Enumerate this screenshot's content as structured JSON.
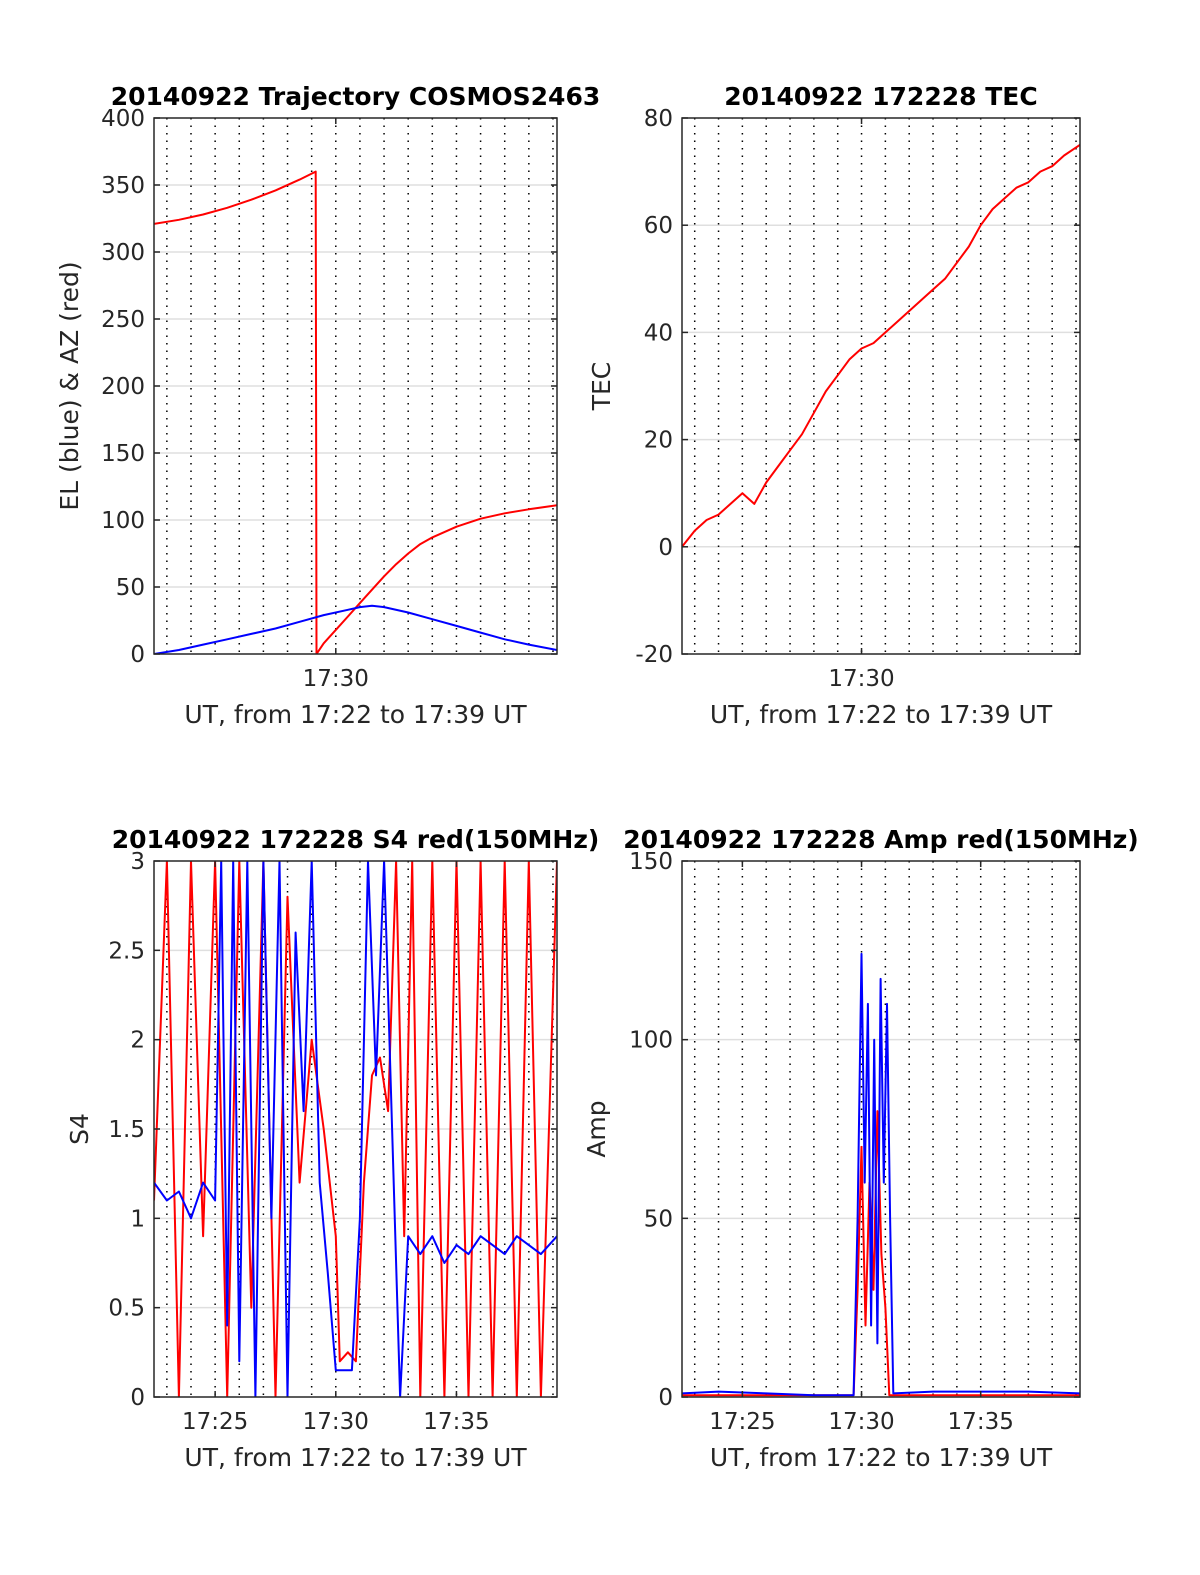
{
  "chart_data": [
    {
      "type": "line",
      "title": "20140922 Trajectory COSMOS2463",
      "xlabel": "UT, from 17:22 to 17:39 UT",
      "ylabel": "EL (blue) & AZ (red)",
      "xlim": [
        "17:22:28",
        "17:39:10"
      ],
      "ylim": [
        0,
        400
      ],
      "yticks": [
        "0",
        "50",
        "100",
        "150",
        "200",
        "250",
        "300",
        "350",
        "400"
      ],
      "xticks": [
        {
          "t": "17:30",
          "label": "17:30"
        }
      ],
      "grid": true,
      "series": [
        {
          "color": "#ff0000",
          "x": [
            "17:22:28",
            "17:23:30",
            "17:24:30",
            "17:25:30",
            "17:26:30",
            "17:27:30",
            "17:28:30",
            "17:29:10",
            "17:29:12",
            "17:29:30",
            "17:30:00",
            "17:30:30",
            "17:31:00",
            "17:31:30",
            "17:32:00",
            "17:32:30",
            "17:33:00",
            "17:33:30",
            "17:34:00",
            "17:35:00",
            "17:36:00",
            "17:37:00",
            "17:38:00",
            "17:39:10"
          ],
          "values": [
            321,
            324,
            328,
            333,
            339,
            346,
            354,
            360,
            0,
            8,
            18,
            28,
            38,
            48,
            58,
            67,
            75,
            82,
            87,
            95,
            101,
            105,
            108,
            111
          ]
        },
        {
          "color": "#0000ff",
          "x": [
            "17:22:28",
            "17:23:30",
            "17:24:30",
            "17:25:30",
            "17:26:30",
            "17:27:30",
            "17:28:30",
            "17:29:30",
            "17:30:30",
            "17:31:00",
            "17:31:30",
            "17:32:00",
            "17:33:00",
            "17:34:00",
            "17:35:00",
            "17:36:00",
            "17:37:00",
            "17:38:00",
            "17:39:10"
          ],
          "values": [
            0,
            3,
            7,
            11,
            15,
            19,
            24,
            29,
            33,
            35,
            36,
            35,
            31,
            26,
            21,
            16,
            11,
            7,
            3
          ]
        }
      ]
    },
    {
      "type": "line",
      "title": "20140922 172228 TEC",
      "xlabel": "UT, from 17:22 to 17:39 UT",
      "ylabel": "TEC",
      "xlim": [
        "17:22:28",
        "17:39:10"
      ],
      "ylim": [
        -20,
        80
      ],
      "yticks": [
        "-20",
        "0",
        "20",
        "40",
        "60",
        "80"
      ],
      "xticks": [
        {
          "t": "17:30",
          "label": "17:30"
        }
      ],
      "grid": true,
      "series": [
        {
          "color": "#ff0000",
          "x": [
            "17:22:28",
            "17:23:00",
            "17:23:30",
            "17:24:00",
            "17:24:30",
            "17:25:00",
            "17:25:30",
            "17:26:00",
            "17:26:30",
            "17:27:00",
            "17:27:30",
            "17:28:00",
            "17:28:30",
            "17:29:00",
            "17:29:30",
            "17:30:00",
            "17:30:30",
            "17:31:00",
            "17:31:30",
            "17:32:00",
            "17:32:30",
            "17:33:00",
            "17:33:30",
            "17:34:00",
            "17:34:30",
            "17:35:00",
            "17:35:30",
            "17:36:00",
            "17:36:30",
            "17:37:00",
            "17:37:30",
            "17:38:00",
            "17:38:30",
            "17:39:10"
          ],
          "values": [
            0,
            3,
            5,
            6,
            8,
            10,
            8,
            12,
            15,
            18,
            21,
            25,
            29,
            32,
            35,
            37,
            38,
            40,
            42,
            44,
            46,
            48,
            50,
            53,
            56,
            60,
            63,
            65,
            67,
            68,
            70,
            71,
            73,
            75
          ]
        }
      ]
    },
    {
      "type": "line",
      "title": "20140922 172228 S4 red(150MHz)",
      "xlabel": "UT, from 17:22 to 17:39 UT",
      "ylabel": "S4",
      "xlim": [
        "17:22:28",
        "17:39:10"
      ],
      "ylim": [
        0,
        3
      ],
      "yticks": [
        "0",
        "0.5",
        "1",
        "1.5",
        "2",
        "2.5",
        "3"
      ],
      "xticks": [
        {
          "t": "17:25",
          "label": "17:25"
        },
        {
          "t": "17:30",
          "label": "17:30"
        },
        {
          "t": "17:35",
          "label": "17:35"
        }
      ],
      "grid": true,
      "series": [
        {
          "color": "#ff0000",
          "x": [
            "17:22:28",
            "17:23:00",
            "17:23:30",
            "17:24:00",
            "17:24:30",
            "17:25:00",
            "17:25:30",
            "17:26:00",
            "17:26:30",
            "17:27:00",
            "17:27:30",
            "17:28:00",
            "17:28:30",
            "17:29:00",
            "17:29:30",
            "17:30:00",
            "17:30:10",
            "17:30:30",
            "17:30:50",
            "17:31:10",
            "17:31:30",
            "17:31:50",
            "17:32:10",
            "17:32:30",
            "17:32:50",
            "17:33:10",
            "17:33:30",
            "17:34:00",
            "17:34:30",
            "17:35:00",
            "17:35:30",
            "17:36:00",
            "17:36:30",
            "17:37:00",
            "17:37:30",
            "17:38:00",
            "17:38:30",
            "17:39:10"
          ],
          "values": [
            1.1,
            3.0,
            0.0,
            3.0,
            0.9,
            3.0,
            0.0,
            3.0,
            0.5,
            3.0,
            0.0,
            2.8,
            1.2,
            2.0,
            1.5,
            0.9,
            0.2,
            0.25,
            0.2,
            1.2,
            1.8,
            1.9,
            1.6,
            3.0,
            0.9,
            3.0,
            0.0,
            3.0,
            0.0,
            3.0,
            0.0,
            3.0,
            0.0,
            3.0,
            0.0,
            3.0,
            0.0,
            3.0
          ]
        },
        {
          "color": "#0000ff",
          "x": [
            "17:22:28",
            "17:23:00",
            "17:23:30",
            "17:24:00",
            "17:24:30",
            "17:25:00",
            "17:25:15",
            "17:25:30",
            "17:25:45",
            "17:26:00",
            "17:26:20",
            "17:26:40",
            "17:27:00",
            "17:27:20",
            "17:27:40",
            "17:28:00",
            "17:28:20",
            "17:28:40",
            "17:29:00",
            "17:29:20",
            "17:29:40",
            "17:30:00",
            "17:30:20",
            "17:30:40",
            "17:31:00",
            "17:31:20",
            "17:31:40",
            "17:32:00",
            "17:32:20",
            "17:32:40",
            "17:33:00",
            "17:33:30",
            "17:34:00",
            "17:34:30",
            "17:35:00",
            "17:35:30",
            "17:36:00",
            "17:36:30",
            "17:37:00",
            "17:37:30",
            "17:38:00",
            "17:38:30",
            "17:39:10"
          ],
          "values": [
            1.2,
            1.1,
            1.15,
            1.0,
            1.2,
            1.1,
            3.0,
            0.4,
            3.0,
            0.2,
            3.0,
            0.0,
            3.0,
            1.0,
            3.0,
            0.0,
            2.6,
            1.6,
            3.0,
            1.2,
            0.7,
            0.15,
            0.15,
            0.15,
            1.0,
            3.0,
            1.8,
            3.0,
            1.5,
            0.0,
            0.9,
            0.8,
            0.9,
            0.75,
            0.85,
            0.8,
            0.9,
            0.85,
            0.8,
            0.9,
            0.85,
            0.8,
            0.9
          ]
        }
      ]
    },
    {
      "type": "line",
      "title": "20140922 172228 Amp red(150MHz)",
      "xlabel": "UT, from 17:22 to 17:39 UT",
      "ylabel": "Amp",
      "xlim": [
        "17:22:28",
        "17:39:10"
      ],
      "ylim": [
        0,
        150
      ],
      "yticks": [
        "0",
        "50",
        "100",
        "150"
      ],
      "xticks": [
        {
          "t": "17:25",
          "label": "17:25"
        },
        {
          "t": "17:30",
          "label": "17:30"
        },
        {
          "t": "17:35",
          "label": "17:35"
        }
      ],
      "grid": true,
      "series": [
        {
          "color": "#ff0000",
          "x": [
            "17:22:28",
            "17:29:40",
            "17:29:50",
            "17:30:00",
            "17:30:10",
            "17:30:20",
            "17:30:30",
            "17:30:40",
            "17:30:50",
            "17:31:00",
            "17:31:10",
            "17:39:10"
          ],
          "values": [
            0.5,
            0.5,
            30,
            70,
            20,
            60,
            30,
            80,
            40,
            25,
            0.5,
            0.5
          ]
        },
        {
          "color": "#0000ff",
          "x": [
            "17:22:28",
            "17:24:00",
            "17:26:00",
            "17:28:00",
            "17:29:40",
            "17:29:50",
            "17:30:00",
            "17:30:08",
            "17:30:16",
            "17:30:24",
            "17:30:32",
            "17:30:40",
            "17:30:48",
            "17:30:56",
            "17:31:04",
            "17:31:12",
            "17:31:20",
            "17:33:00",
            "17:35:00",
            "17:37:00",
            "17:39:10"
          ],
          "values": [
            1,
            1.5,
            1,
            0.5,
            0.5,
            50,
            124,
            60,
            110,
            20,
            100,
            15,
            117,
            60,
            110,
            50,
            1,
            1.5,
            1.5,
            1.5,
            1
          ]
        }
      ]
    }
  ]
}
